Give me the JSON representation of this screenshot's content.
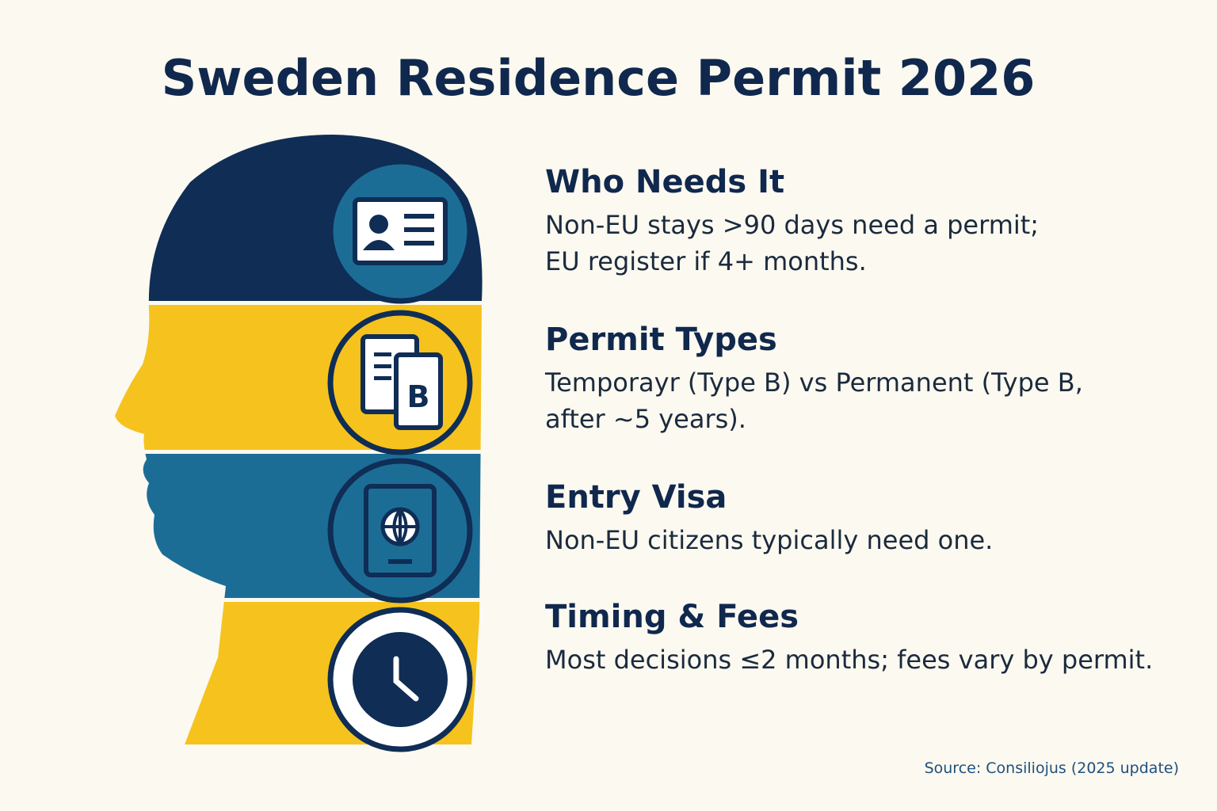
{
  "header": {
    "title": "Sweden Residence Permit 2026"
  },
  "sections": [
    {
      "heading": "Who Needs It",
      "lines": [
        "Non-EU stays >90 days need a permit;",
        "EU register if 4+ months."
      ]
    },
    {
      "heading": "Permit Types",
      "lines": [
        "Temporayr (Type B) vs Permanent (Type B,",
        "after ~5 years)."
      ],
      "icon_text": "B"
    },
    {
      "heading": "Entry Visa",
      "lines": [
        "Non-EU citizens typically need one."
      ]
    },
    {
      "heading": "Timing & Fees",
      "lines": [
        "Most decisions ≤2 months; fees vary by permit."
      ]
    }
  ],
  "footer": {
    "source": "Source: Consiliojus (2025 update)"
  }
}
